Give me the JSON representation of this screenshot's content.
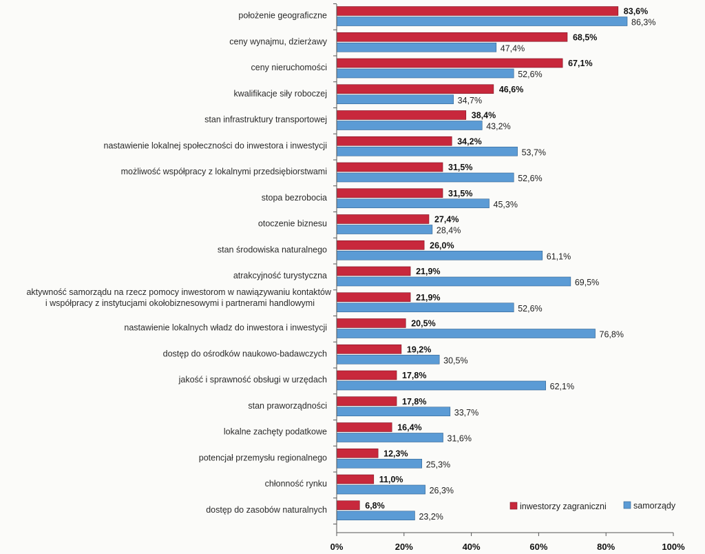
{
  "chart_data": {
    "type": "bar",
    "orientation": "horizontal",
    "categories": [
      "położenie geograficzne",
      "ceny wynajmu, dzierżawy",
      "ceny nieruchomości",
      "kwalifikacje siły roboczej",
      "stan infrastruktury transportowej",
      "nastawienie lokalnej społeczności do inwestora i inwestycji",
      "możliwość współpracy z lokalnymi przedsiębiorstwami",
      "stopa bezrobocia",
      "otoczenie biznesu",
      "stan środowiska naturalnego",
      "atrakcyjność turystyczna",
      "aktywność samorządu na rzecz pomocy inwestorom w nawiązywaniu kontaktów|i współpracy z instytucjami okołobiznesowymi i partnerami handlowymi",
      "nastawienie lokalnych władz do inwestora i inwestycji",
      "dostęp do ośrodków naukowo-badawczych",
      "jakość i sprawność obsługi w urzędach",
      "stan praworządności",
      "lokalne zachęty podatkowe",
      "potencjał przemysłu regionalnego",
      "chłonność rynku",
      "dostęp do zasobów naturalnych"
    ],
    "series": [
      {
        "name": "inwestorzy zagraniczni",
        "color": "#c8283c",
        "values": [
          83.6,
          68.5,
          67.1,
          46.6,
          38.4,
          34.2,
          31.5,
          31.5,
          27.4,
          26.0,
          21.9,
          21.9,
          20.5,
          19.2,
          17.8,
          17.8,
          16.4,
          12.3,
          11.0,
          6.8
        ],
        "labels": [
          "83,6%",
          "68,5%",
          "67,1%",
          "46,6%",
          "38,4%",
          "34,2%",
          "31,5%",
          "31,5%",
          "27,4%",
          "26,0%",
          "21,9%",
          "21,9%",
          "20,5%",
          "19,2%",
          "17,8%",
          "17,8%",
          "16,4%",
          "12,3%",
          "11,0%",
          "6,8%"
        ]
      },
      {
        "name": "samorządy",
        "color": "#5b9bd5",
        "values": [
          86.3,
          47.4,
          52.6,
          34.7,
          43.2,
          53.7,
          52.6,
          45.3,
          28.4,
          61.1,
          69.5,
          52.6,
          76.8,
          30.5,
          62.1,
          33.7,
          31.6,
          25.3,
          26.3,
          23.2
        ],
        "labels": [
          "86,3%",
          "47,4%",
          "52,6%",
          "34,7%",
          "43,2%",
          "53,7%",
          "52,6%",
          "45,3%",
          "28,4%",
          "61,1%",
          "69,5%",
          "52,6%",
          "76,8%",
          "30,5%",
          "62,1%",
          "33,7%",
          "31,6%",
          "25,3%",
          "26,3%",
          "23,2%"
        ]
      }
    ],
    "xlim": [
      0,
      100
    ],
    "ticks": [
      0,
      20,
      40,
      60,
      80,
      100
    ],
    "tick_labels": [
      "0%",
      "20%",
      "40%",
      "60%",
      "80%",
      "100%"
    ],
    "title": "",
    "xlabel": "",
    "ylabel": "",
    "grid": false,
    "legend_position": "bottom-right"
  }
}
